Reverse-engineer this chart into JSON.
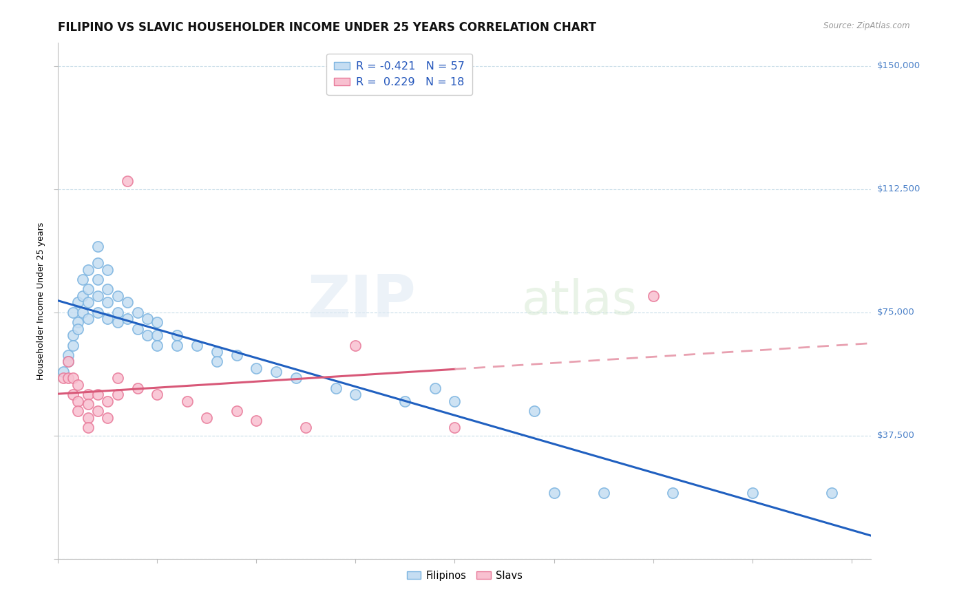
{
  "title": "FILIPINO VS SLAVIC HOUSEHOLDER INCOME UNDER 25 YEARS CORRELATION CHART",
  "source": "Source: ZipAtlas.com",
  "ylabel": "Householder Income Under 25 years",
  "xlim": [
    0.0,
    0.082
  ],
  "ylim": [
    0,
    157000
  ],
  "yticks": [
    0,
    37500,
    75000,
    112500,
    150000
  ],
  "ytick_labels": [
    "",
    "$37,500",
    "$75,000",
    "$112,500",
    "$150,000"
  ],
  "xticks": [
    0.0,
    0.01,
    0.02,
    0.03,
    0.04,
    0.05,
    0.06,
    0.07,
    0.08
  ],
  "watermark_zip": "ZIP",
  "watermark_atlas": "atlas",
  "filipino_color_face": "#c5ddf2",
  "filipino_color_edge": "#7ab3e0",
  "slavic_color_face": "#f8c0d0",
  "slavic_color_edge": "#e87898",
  "trend_filipino_color": "#2060c0",
  "trend_slavic_color": "#d85878",
  "trend_slavic_dash_color": "#e8a0b0",
  "background_color": "#ffffff",
  "grid_color": "#c8dce8",
  "filipino_points_x": [
    0.0005,
    0.001,
    0.001,
    0.0015,
    0.0015,
    0.0015,
    0.002,
    0.002,
    0.002,
    0.0025,
    0.0025,
    0.0025,
    0.003,
    0.003,
    0.003,
    0.003,
    0.004,
    0.004,
    0.004,
    0.004,
    0.004,
    0.005,
    0.005,
    0.005,
    0.005,
    0.006,
    0.006,
    0.006,
    0.007,
    0.007,
    0.008,
    0.008,
    0.009,
    0.009,
    0.01,
    0.01,
    0.01,
    0.012,
    0.012,
    0.014,
    0.016,
    0.016,
    0.018,
    0.02,
    0.022,
    0.024,
    0.028,
    0.03,
    0.035,
    0.038,
    0.04,
    0.048,
    0.05,
    0.055,
    0.062,
    0.07,
    0.078
  ],
  "filipino_points_y": [
    57000,
    62000,
    60000,
    75000,
    68000,
    65000,
    72000,
    78000,
    70000,
    80000,
    85000,
    75000,
    88000,
    82000,
    78000,
    73000,
    95000,
    90000,
    85000,
    80000,
    75000,
    88000,
    82000,
    78000,
    73000,
    80000,
    75000,
    72000,
    78000,
    73000,
    75000,
    70000,
    73000,
    68000,
    72000,
    68000,
    65000,
    68000,
    65000,
    65000,
    63000,
    60000,
    62000,
    58000,
    57000,
    55000,
    52000,
    50000,
    48000,
    52000,
    48000,
    45000,
    20000,
    20000,
    20000,
    20000,
    20000
  ],
  "slavic_points_x": [
    0.0005,
    0.001,
    0.001,
    0.0015,
    0.0015,
    0.002,
    0.002,
    0.002,
    0.003,
    0.003,
    0.003,
    0.003,
    0.004,
    0.004,
    0.005,
    0.005,
    0.006,
    0.006,
    0.007,
    0.008,
    0.01,
    0.013,
    0.015,
    0.018,
    0.02,
    0.025,
    0.03,
    0.04,
    0.06
  ],
  "slavic_points_y": [
    55000,
    60000,
    55000,
    55000,
    50000,
    53000,
    48000,
    45000,
    50000,
    47000,
    43000,
    40000,
    50000,
    45000,
    48000,
    43000,
    55000,
    50000,
    115000,
    52000,
    50000,
    48000,
    43000,
    45000,
    42000,
    40000,
    65000,
    40000,
    80000
  ],
  "title_fontsize": 12,
  "axis_label_fontsize": 9,
  "tick_fontsize": 9.5,
  "legend_fontsize": 11.5
}
